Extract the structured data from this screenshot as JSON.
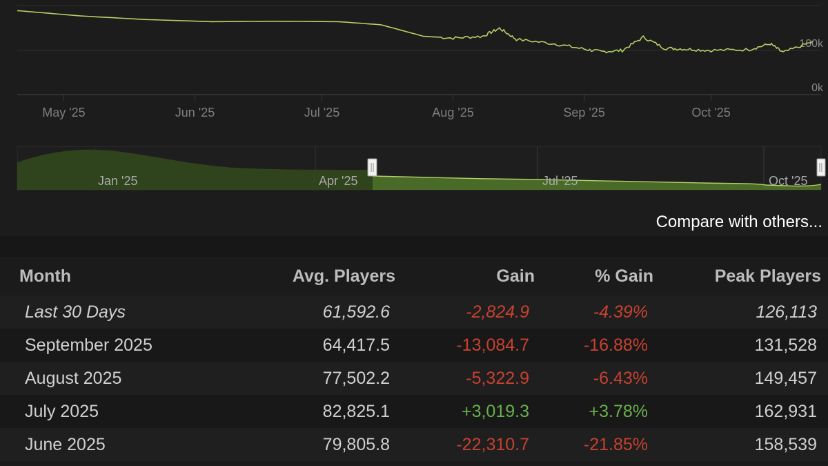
{
  "chart": {
    "x_ticks": [
      "May '25",
      "Jun '25",
      "Jul '25",
      "Aug '25",
      "Sep '25",
      "Oct '25"
    ],
    "y_ticks": [
      "100k",
      "0k"
    ],
    "navigator_ticks": [
      "Jan '25",
      "Apr '25",
      "Jul '25",
      "Oct '25"
    ],
    "line_color": "#b5d067",
    "area_color": "#4a6b28"
  },
  "chart_data": {
    "type": "line",
    "x": [
      "2025-04-20",
      "2025-05-05",
      "2025-05-20",
      "2025-06-05",
      "2025-06-20",
      "2025-07-05",
      "2025-07-15",
      "2025-07-25",
      "2025-08-01",
      "2025-08-08",
      "2025-08-12",
      "2025-08-16",
      "2025-08-25",
      "2025-09-01",
      "2025-09-05",
      "2025-09-10",
      "2025-09-15",
      "2025-09-20",
      "2025-09-25",
      "2025-10-01",
      "2025-10-10",
      "2025-10-15",
      "2025-10-18",
      "2025-10-25"
    ],
    "y": [
      190000,
      178000,
      170000,
      165000,
      166000,
      165000,
      158000,
      132000,
      128000,
      132000,
      150000,
      125000,
      115000,
      103000,
      97000,
      100000,
      130000,
      105000,
      103000,
      100000,
      102000,
      115000,
      95000,
      120000
    ],
    "y_ticks": [
      "0k",
      "100k"
    ]
  },
  "compare_label": "Compare with others...",
  "table": {
    "headers": {
      "month": "Month",
      "avg": "Avg. Players",
      "gain": "Gain",
      "pct": "% Gain",
      "peak": "Peak Players"
    },
    "rows": [
      {
        "month": "Last 30 Days",
        "avg": "61,592.6",
        "gain": "-2,824.9",
        "pct": "-4.39%",
        "peak": "126,113"
      },
      {
        "month": "September 2025",
        "avg": "64,417.5",
        "gain": "-13,084.7",
        "pct": "-16.88%",
        "peak": "131,528"
      },
      {
        "month": "August 2025",
        "avg": "77,502.2",
        "gain": "-5,322.9",
        "pct": "-6.43%",
        "peak": "149,457"
      },
      {
        "month": "July 2025",
        "avg": "82,825.1",
        "gain": "+3,019.3",
        "pct": "+3.78%",
        "peak": "162,931"
      },
      {
        "month": "June 2025",
        "avg": "79,805.8",
        "gain": "-22,310.7",
        "pct": "-21.85%",
        "peak": "158,539"
      }
    ]
  }
}
